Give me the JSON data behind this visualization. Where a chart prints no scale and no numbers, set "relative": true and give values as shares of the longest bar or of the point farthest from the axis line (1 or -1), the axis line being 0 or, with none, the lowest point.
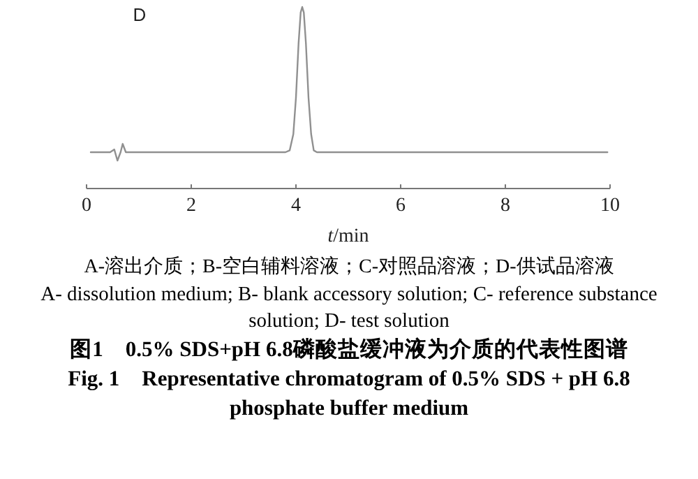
{
  "chart_data": {
    "type": "line",
    "title": "D",
    "xlabel": "t/min",
    "relative": true,
    "x": [
      0.08,
      0.45,
      0.53,
      0.59,
      0.65,
      0.69,
      0.75,
      0.85,
      3.8,
      3.88,
      3.95,
      4.0,
      4.05,
      4.09,
      4.12,
      4.15,
      4.19,
      4.24,
      4.29,
      4.34,
      4.4,
      9.95
    ],
    "series": [
      {
        "color": "#909090",
        "values": [
          0.2,
          0.2,
          0.215,
          0.154,
          0.2,
          0.246,
          0.2,
          0.2,
          0.2,
          0.21,
          0.3,
          0.5,
          0.8,
          0.97,
          1.0,
          0.97,
          0.8,
          0.5,
          0.3,
          0.21,
          0.2,
          0.2
        ]
      }
    ],
    "xlim": [
      0,
      10
    ],
    "xticks": [
      0,
      2,
      4,
      6,
      8,
      10
    ],
    "tick_labels": "x",
    "grid": false,
    "annotations": [
      "A-溶出介质；B-空白辅料溶液；C-对照品溶液；D-供试品溶液",
      "A- dissolution medium; B- blank accessory solution; C- reference substance solution; D- test solution",
      "图1　0.5% SDS+pH 6.8磷酸盐缓冲液为介质的代表性图谱",
      "Fig. 1　Representative chromatogram of 0.5% SDS + pH 6.8 phosphate buffer medium"
    ]
  }
}
